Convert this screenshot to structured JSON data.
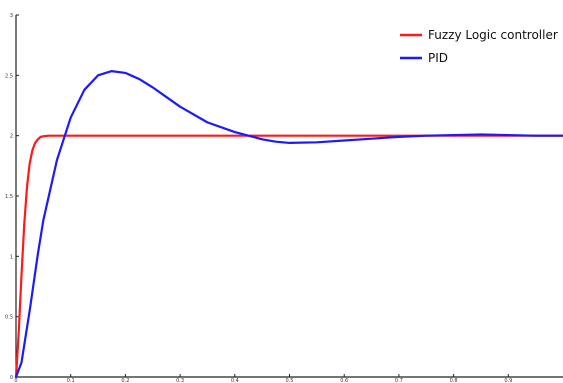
{
  "chart_data": {
    "type": "line",
    "title": "",
    "xlabel": "",
    "ylabel": "",
    "xlim": [
      0,
      2
    ],
    "ylim": [
      0,
      3
    ],
    "grid": false,
    "legend_position": "top-right",
    "x_ticks": [
      {
        "value": 0,
        "label": "0"
      },
      {
        "value": 0.2,
        "label": "0.1"
      },
      {
        "value": 0.4,
        "label": "0.2"
      },
      {
        "value": 0.6,
        "label": "0.3"
      },
      {
        "value": 0.8,
        "label": "0.4"
      },
      {
        "value": 1.0,
        "label": "0.5"
      },
      {
        "value": 1.2,
        "label": "0.6"
      },
      {
        "value": 1.4,
        "label": "0.7"
      },
      {
        "value": 1.6,
        "label": "0.8"
      },
      {
        "value": 1.8,
        "label": "0.9"
      }
    ],
    "y_ticks": [
      {
        "value": 0,
        "label": "0"
      },
      {
        "value": 0.5,
        "label": "0.5"
      },
      {
        "value": 1,
        "label": "1"
      },
      {
        "value": 1.5,
        "label": "1.5"
      },
      {
        "value": 2,
        "label": "2"
      },
      {
        "value": 2.5,
        "label": "2.5"
      },
      {
        "value": 3,
        "label": "3"
      }
    ],
    "series": [
      {
        "name": "Fuzzy Logic controller",
        "color": "#ff1a1a",
        "x": [
          0,
          0.01,
          0.02,
          0.03,
          0.04,
          0.05,
          0.06,
          0.07,
          0.08,
          0.09,
          0.1,
          0.12,
          0.14,
          0.16,
          0.2,
          0.3,
          0.5,
          1.0,
          1.5,
          2.0
        ],
        "y": [
          0,
          0.37,
          0.84,
          1.26,
          1.57,
          1.77,
          1.88,
          1.94,
          1.97,
          1.99,
          1.995,
          2.0,
          2.0,
          2.0,
          2.0,
          2.0,
          2.0,
          2.0,
          2.0,
          2.0
        ]
      },
      {
        "name": "PID",
        "color": "#1a1aff",
        "x": [
          0,
          0.02,
          0.05,
          0.08,
          0.1,
          0.15,
          0.2,
          0.25,
          0.3,
          0.35,
          0.4,
          0.45,
          0.5,
          0.55,
          0.6,
          0.7,
          0.8,
          0.9,
          0.95,
          1.0,
          1.1,
          1.2,
          1.3,
          1.4,
          1.5,
          1.6,
          1.7,
          1.8,
          1.9,
          2.0
        ],
        "y": [
          0,
          0.12,
          0.55,
          1.02,
          1.3,
          1.8,
          2.15,
          2.38,
          2.5,
          2.535,
          2.52,
          2.47,
          2.4,
          2.32,
          2.24,
          2.11,
          2.03,
          1.97,
          1.95,
          1.94,
          1.945,
          1.96,
          1.975,
          1.99,
          2.0,
          2.005,
          2.01,
          2.005,
          2.0,
          2.0
        ]
      }
    ]
  }
}
